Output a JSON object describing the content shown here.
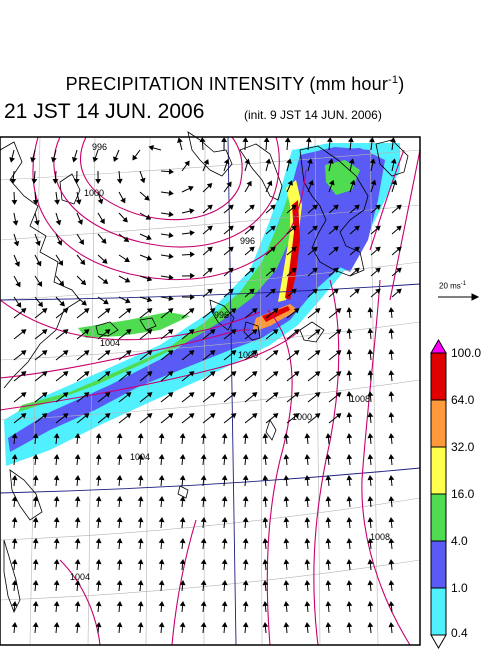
{
  "title": {
    "main": "PRECIPITATION INTENSITY (mm hour",
    "exp": "-1",
    "close": ")"
  },
  "valid_time": "21 JST 14 JUN. 2006",
  "init_time": "(init. 9 JST 14 JUN. 2006)",
  "vector_scale": {
    "text": "20 ms",
    "exp": "-1"
  },
  "colorbar": {
    "ticks": [
      "100.0",
      "64.0",
      "32.0",
      "16.0",
      "4.0",
      "1.0",
      "0.4"
    ],
    "colors": [
      "#ff00ff",
      "#e00000",
      "#ff9a3c",
      "#ffff50",
      "#50dc50",
      "#5a5af5",
      "#50f0ff",
      "#ffffff"
    ]
  },
  "isobar_labels": [
    "996",
    "1000",
    "996",
    "996",
    "1004",
    "1000",
    "1000",
    "1008",
    "1004",
    "1008",
    "1004"
  ],
  "colors": {
    "frame": "#000000",
    "isobar": "#c8006e",
    "grid": "#b4b4b4",
    "coast": "#000000",
    "latlon": "#1e1e82"
  }
}
